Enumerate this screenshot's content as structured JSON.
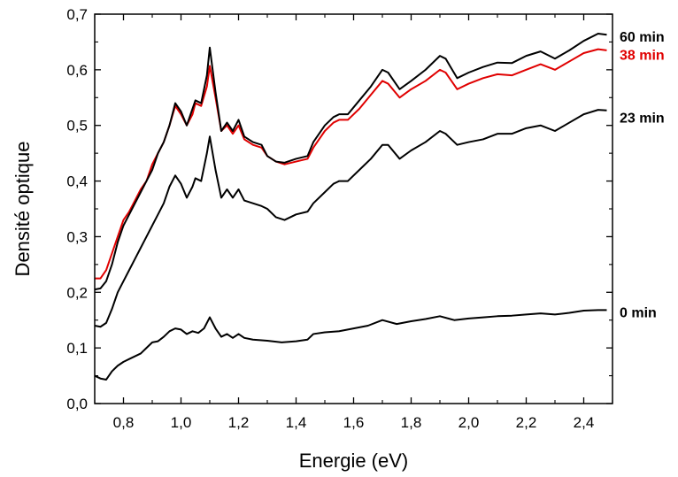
{
  "chart_data": {
    "type": "line",
    "title": "",
    "xlabel": "Energie (eV)",
    "ylabel": "Densité optique",
    "xlim": [
      0.7,
      2.5
    ],
    "ylim": [
      0.0,
      0.7
    ],
    "grid": false,
    "x_ticks": [
      0.8,
      1.0,
      1.2,
      1.4,
      1.6,
      1.8,
      2.0,
      2.2,
      2.4
    ],
    "x_tick_labels": [
      "0,8",
      "1,0",
      "1,2",
      "1,4",
      "1,6",
      "1,8",
      "2,0",
      "2,2",
      "2,4"
    ],
    "y_ticks": [
      0.0,
      0.1,
      0.2,
      0.3,
      0.4,
      0.5,
      0.6,
      0.7
    ],
    "y_tick_labels": [
      "0,0",
      "0,1",
      "0,2",
      "0,3",
      "0,4",
      "0,5",
      "0,6",
      "0,7"
    ],
    "series": [
      {
        "name": "0 min",
        "color": "#000000",
        "label_y": 0.165,
        "points": [
          [
            0.7,
            0.05
          ],
          [
            0.72,
            0.045
          ],
          [
            0.74,
            0.043
          ],
          [
            0.76,
            0.058
          ],
          [
            0.78,
            0.068
          ],
          [
            0.8,
            0.075
          ],
          [
            0.82,
            0.08
          ],
          [
            0.84,
            0.085
          ],
          [
            0.86,
            0.09
          ],
          [
            0.88,
            0.1
          ],
          [
            0.9,
            0.11
          ],
          [
            0.92,
            0.112
          ],
          [
            0.94,
            0.12
          ],
          [
            0.96,
            0.13
          ],
          [
            0.98,
            0.135
          ],
          [
            1.0,
            0.133
          ],
          [
            1.02,
            0.125
          ],
          [
            1.04,
            0.13
          ],
          [
            1.06,
            0.127
          ],
          [
            1.08,
            0.135
          ],
          [
            1.1,
            0.155
          ],
          [
            1.12,
            0.135
          ],
          [
            1.14,
            0.12
          ],
          [
            1.16,
            0.125
          ],
          [
            1.18,
            0.118
          ],
          [
            1.2,
            0.125
          ],
          [
            1.22,
            0.118
          ],
          [
            1.25,
            0.115
          ],
          [
            1.3,
            0.113
          ],
          [
            1.35,
            0.11
          ],
          [
            1.4,
            0.112
          ],
          [
            1.44,
            0.115
          ],
          [
            1.46,
            0.125
          ],
          [
            1.5,
            0.128
          ],
          [
            1.55,
            0.13
          ],
          [
            1.6,
            0.135
          ],
          [
            1.65,
            0.14
          ],
          [
            1.7,
            0.15
          ],
          [
            1.75,
            0.143
          ],
          [
            1.8,
            0.148
          ],
          [
            1.85,
            0.152
          ],
          [
            1.9,
            0.157
          ],
          [
            1.95,
            0.15
          ],
          [
            2.0,
            0.153
          ],
          [
            2.05,
            0.155
          ],
          [
            2.1,
            0.157
          ],
          [
            2.15,
            0.158
          ],
          [
            2.2,
            0.16
          ],
          [
            2.25,
            0.162
          ],
          [
            2.3,
            0.16
          ],
          [
            2.35,
            0.163
          ],
          [
            2.4,
            0.167
          ],
          [
            2.45,
            0.168
          ],
          [
            2.48,
            0.168
          ]
        ]
      },
      {
        "name": "23 min",
        "color": "#000000",
        "label_y": 0.515,
        "points": [
          [
            0.7,
            0.14
          ],
          [
            0.72,
            0.138
          ],
          [
            0.74,
            0.145
          ],
          [
            0.76,
            0.17
          ],
          [
            0.78,
            0.2
          ],
          [
            0.8,
            0.22
          ],
          [
            0.82,
            0.24
          ],
          [
            0.84,
            0.26
          ],
          [
            0.86,
            0.28
          ],
          [
            0.88,
            0.3
          ],
          [
            0.9,
            0.32
          ],
          [
            0.92,
            0.34
          ],
          [
            0.94,
            0.36
          ],
          [
            0.96,
            0.39
          ],
          [
            0.98,
            0.41
          ],
          [
            1.0,
            0.395
          ],
          [
            1.02,
            0.37
          ],
          [
            1.04,
            0.39
          ],
          [
            1.05,
            0.405
          ],
          [
            1.07,
            0.4
          ],
          [
            1.09,
            0.45
          ],
          [
            1.1,
            0.48
          ],
          [
            1.12,
            0.42
          ],
          [
            1.14,
            0.37
          ],
          [
            1.16,
            0.385
          ],
          [
            1.18,
            0.37
          ],
          [
            1.2,
            0.385
          ],
          [
            1.22,
            0.365
          ],
          [
            1.25,
            0.36
          ],
          [
            1.28,
            0.355
          ],
          [
            1.3,
            0.35
          ],
          [
            1.33,
            0.335
          ],
          [
            1.36,
            0.33
          ],
          [
            1.4,
            0.34
          ],
          [
            1.44,
            0.345
          ],
          [
            1.46,
            0.36
          ],
          [
            1.5,
            0.38
          ],
          [
            1.53,
            0.395
          ],
          [
            1.55,
            0.4
          ],
          [
            1.58,
            0.4
          ],
          [
            1.62,
            0.42
          ],
          [
            1.66,
            0.44
          ],
          [
            1.7,
            0.465
          ],
          [
            1.72,
            0.465
          ],
          [
            1.76,
            0.44
          ],
          [
            1.8,
            0.455
          ],
          [
            1.85,
            0.47
          ],
          [
            1.9,
            0.49
          ],
          [
            1.92,
            0.485
          ],
          [
            1.96,
            0.465
          ],
          [
            2.0,
            0.47
          ],
          [
            2.05,
            0.475
          ],
          [
            2.1,
            0.485
          ],
          [
            2.15,
            0.485
          ],
          [
            2.2,
            0.495
          ],
          [
            2.25,
            0.5
          ],
          [
            2.3,
            0.49
          ],
          [
            2.35,
            0.505
          ],
          [
            2.4,
            0.52
          ],
          [
            2.45,
            0.528
          ],
          [
            2.48,
            0.527
          ]
        ]
      },
      {
        "name": "38 min",
        "color": "#e00000",
        "label_y": 0.628,
        "points": [
          [
            0.7,
            0.225
          ],
          [
            0.72,
            0.225
          ],
          [
            0.74,
            0.24
          ],
          [
            0.76,
            0.27
          ],
          [
            0.78,
            0.3
          ],
          [
            0.8,
            0.33
          ],
          [
            0.82,
            0.345
          ],
          [
            0.84,
            0.365
          ],
          [
            0.86,
            0.385
          ],
          [
            0.88,
            0.4
          ],
          [
            0.9,
            0.43
          ],
          [
            0.92,
            0.45
          ],
          [
            0.94,
            0.47
          ],
          [
            0.96,
            0.5
          ],
          [
            0.98,
            0.535
          ],
          [
            1.0,
            0.52
          ],
          [
            1.02,
            0.5
          ],
          [
            1.04,
            0.52
          ],
          [
            1.05,
            0.54
          ],
          [
            1.07,
            0.535
          ],
          [
            1.09,
            0.57
          ],
          [
            1.1,
            0.607
          ],
          [
            1.12,
            0.55
          ],
          [
            1.14,
            0.49
          ],
          [
            1.16,
            0.5
          ],
          [
            1.18,
            0.485
          ],
          [
            1.2,
            0.5
          ],
          [
            1.22,
            0.475
          ],
          [
            1.25,
            0.465
          ],
          [
            1.28,
            0.46
          ],
          [
            1.3,
            0.445
          ],
          [
            1.33,
            0.435
          ],
          [
            1.36,
            0.43
          ],
          [
            1.4,
            0.435
          ],
          [
            1.44,
            0.44
          ],
          [
            1.46,
            0.46
          ],
          [
            1.5,
            0.49
          ],
          [
            1.53,
            0.505
          ],
          [
            1.55,
            0.51
          ],
          [
            1.58,
            0.51
          ],
          [
            1.62,
            0.53
          ],
          [
            1.66,
            0.555
          ],
          [
            1.7,
            0.58
          ],
          [
            1.72,
            0.575
          ],
          [
            1.76,
            0.55
          ],
          [
            1.8,
            0.565
          ],
          [
            1.85,
            0.58
          ],
          [
            1.9,
            0.6
          ],
          [
            1.92,
            0.595
          ],
          [
            1.96,
            0.565
          ],
          [
            2.0,
            0.575
          ],
          [
            2.05,
            0.585
          ],
          [
            2.1,
            0.592
          ],
          [
            2.15,
            0.59
          ],
          [
            2.2,
            0.6
          ],
          [
            2.25,
            0.61
          ],
          [
            2.3,
            0.6
          ],
          [
            2.35,
            0.615
          ],
          [
            2.4,
            0.63
          ],
          [
            2.45,
            0.637
          ],
          [
            2.48,
            0.635
          ]
        ]
      },
      {
        "name": "60 min",
        "color": "#000000",
        "label_y": 0.66,
        "points": [
          [
            0.7,
            0.205
          ],
          [
            0.72,
            0.207
          ],
          [
            0.74,
            0.22
          ],
          [
            0.76,
            0.25
          ],
          [
            0.78,
            0.29
          ],
          [
            0.8,
            0.32
          ],
          [
            0.82,
            0.34
          ],
          [
            0.84,
            0.36
          ],
          [
            0.86,
            0.38
          ],
          [
            0.88,
            0.4
          ],
          [
            0.9,
            0.42
          ],
          [
            0.92,
            0.45
          ],
          [
            0.94,
            0.47
          ],
          [
            0.96,
            0.5
          ],
          [
            0.98,
            0.54
          ],
          [
            1.0,
            0.525
          ],
          [
            1.02,
            0.5
          ],
          [
            1.04,
            0.53
          ],
          [
            1.05,
            0.545
          ],
          [
            1.07,
            0.54
          ],
          [
            1.09,
            0.59
          ],
          [
            1.1,
            0.64
          ],
          [
            1.12,
            0.56
          ],
          [
            1.14,
            0.49
          ],
          [
            1.16,
            0.505
          ],
          [
            1.18,
            0.49
          ],
          [
            1.2,
            0.51
          ],
          [
            1.22,
            0.48
          ],
          [
            1.25,
            0.47
          ],
          [
            1.28,
            0.465
          ],
          [
            1.3,
            0.445
          ],
          [
            1.33,
            0.435
          ],
          [
            1.36,
            0.433
          ],
          [
            1.4,
            0.44
          ],
          [
            1.44,
            0.445
          ],
          [
            1.46,
            0.47
          ],
          [
            1.5,
            0.5
          ],
          [
            1.53,
            0.515
          ],
          [
            1.55,
            0.52
          ],
          [
            1.58,
            0.52
          ],
          [
            1.62,
            0.545
          ],
          [
            1.66,
            0.57
          ],
          [
            1.7,
            0.6
          ],
          [
            1.72,
            0.595
          ],
          [
            1.76,
            0.565
          ],
          [
            1.8,
            0.58
          ],
          [
            1.85,
            0.6
          ],
          [
            1.9,
            0.625
          ],
          [
            1.92,
            0.62
          ],
          [
            1.96,
            0.585
          ],
          [
            2.0,
            0.595
          ],
          [
            2.05,
            0.605
          ],
          [
            2.1,
            0.613
          ],
          [
            2.15,
            0.612
          ],
          [
            2.2,
            0.625
          ],
          [
            2.25,
            0.633
          ],
          [
            2.3,
            0.62
          ],
          [
            2.35,
            0.635
          ],
          [
            2.4,
            0.652
          ],
          [
            2.45,
            0.665
          ],
          [
            2.48,
            0.663
          ]
        ]
      }
    ]
  }
}
